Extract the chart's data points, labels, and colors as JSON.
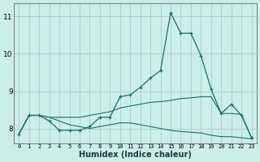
{
  "xlabel": "Humidex (Indice chaleur)",
  "bg_color": "#cceee8",
  "grid_color": "#aacccc",
  "line_color": "#1a6e6e",
  "xlim": [
    -0.5,
    23.5
  ],
  "ylim": [
    7.6,
    11.35
  ],
  "yticks": [
    8,
    9,
    10,
    11
  ],
  "xticks": [
    0,
    1,
    2,
    3,
    4,
    5,
    6,
    7,
    8,
    9,
    10,
    11,
    12,
    13,
    14,
    15,
    16,
    17,
    18,
    19,
    20,
    21,
    22,
    23
  ],
  "series": {
    "line_main": {
      "x": [
        0,
        1,
        2,
        3,
        4,
        5,
        6,
        7,
        8,
        9,
        10,
        11,
        12,
        13,
        14,
        15,
        16,
        17,
        18,
        19,
        20,
        21,
        22,
        23
      ],
      "y": [
        7.85,
        8.35,
        8.35,
        8.2,
        7.95,
        7.95,
        7.95,
        8.05,
        8.3,
        8.3,
        8.85,
        8.9,
        9.1,
        9.35,
        9.55,
        11.1,
        10.55,
        10.55,
        9.95,
        9.05,
        8.4,
        8.65,
        8.35,
        7.75
      ]
    },
    "line_upper": {
      "x": [
        0,
        1,
        2,
        3,
        4,
        5,
        6,
        7,
        8,
        9,
        10,
        11,
        12,
        13,
        14,
        15,
        16,
        17,
        18,
        19,
        20,
        21,
        22,
        23
      ],
      "y": [
        7.85,
        8.35,
        8.35,
        8.3,
        8.3,
        8.3,
        8.3,
        8.35,
        8.4,
        8.45,
        8.55,
        8.6,
        8.65,
        8.7,
        8.72,
        8.75,
        8.8,
        8.82,
        8.85,
        8.85,
        8.4,
        8.4,
        8.38,
        7.75
      ]
    },
    "line_lower": {
      "x": [
        0,
        1,
        2,
        3,
        4,
        5,
        6,
        7,
        8,
        9,
        10,
        11,
        12,
        13,
        14,
        15,
        16,
        17,
        18,
        19,
        20,
        21,
        22,
        23
      ],
      "y": [
        7.85,
        8.35,
        8.35,
        8.3,
        8.2,
        8.1,
        8.05,
        8.0,
        8.05,
        8.1,
        8.15,
        8.15,
        8.1,
        8.05,
        8.0,
        7.95,
        7.92,
        7.9,
        7.88,
        7.82,
        7.78,
        7.78,
        7.75,
        7.72
      ]
    }
  }
}
